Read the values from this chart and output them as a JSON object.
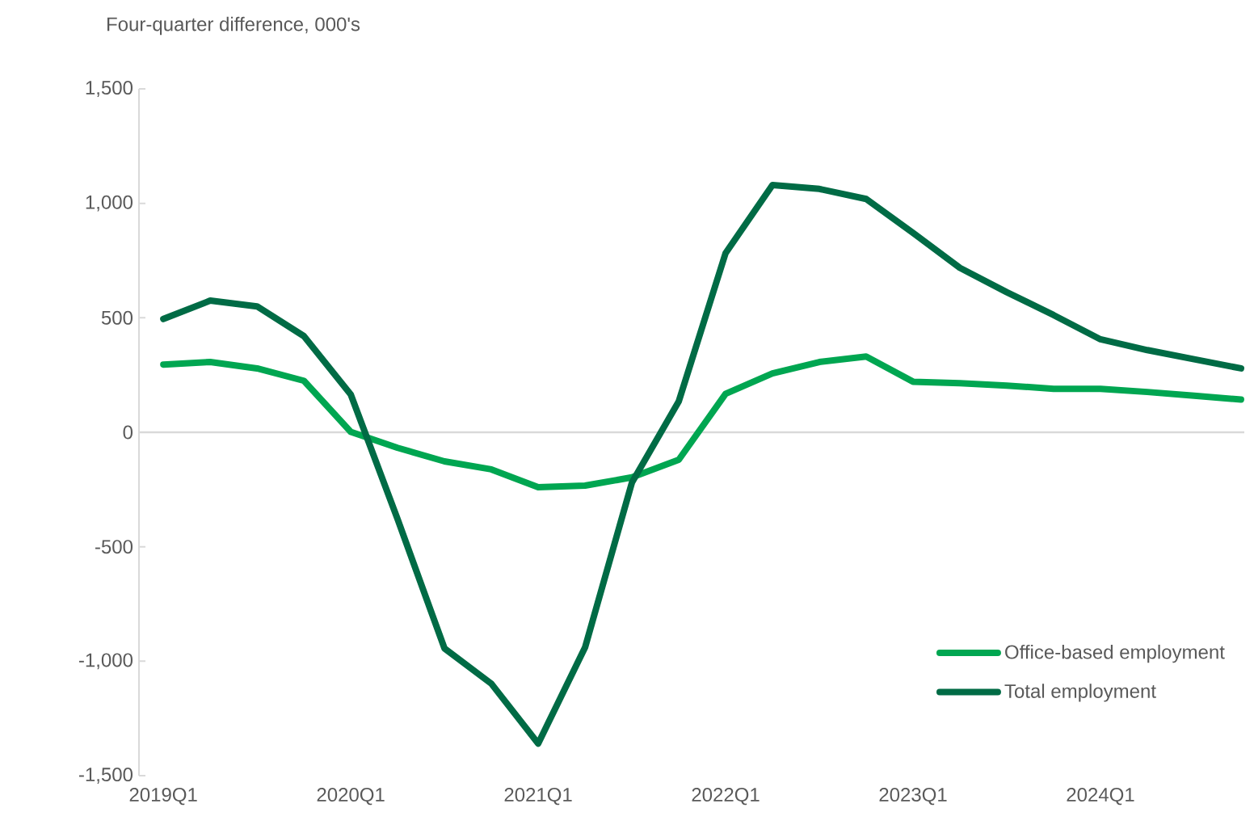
{
  "chart_data": {
    "type": "line",
    "ylabel": "Four-quarter difference, 000's",
    "categories": [
      "2019Q1",
      null,
      null,
      null,
      "2020Q1",
      null,
      null,
      null,
      "2021Q1",
      null,
      null,
      null,
      "2022Q1",
      null,
      null,
      null,
      "2023Q1",
      null,
      null,
      null,
      "2024Q1",
      null,
      null,
      null
    ],
    "series": [
      {
        "name": "Office-based employment",
        "color": "#00a651",
        "values": [
          296,
          307,
          279,
          225,
          2,
          -68,
          -127,
          -162,
          -240,
          -233,
          -197,
          -120,
          168,
          257,
          307,
          331,
          221,
          214,
          204,
          190,
          190,
          176,
          160,
          143
        ]
      },
      {
        "name": "Total employment",
        "color": "#006b45",
        "values": [
          495,
          575,
          550,
          420,
          165,
          -380,
          -944,
          -1098,
          -1360,
          -940,
          -220,
          135,
          783,
          1080,
          1063,
          1019,
          871,
          718,
          612,
          512,
          406,
          359,
          319,
          279
        ]
      }
    ],
    "ylim": [
      -1500,
      1500
    ],
    "yticks": [
      {
        "value": -1500,
        "label": "-1,500"
      },
      {
        "value": -1000,
        "label": "-1,000"
      },
      -500,
      0,
      500,
      {
        "value": 1000,
        "label": "1,000"
      },
      {
        "value": 1500,
        "label": "1,500"
      }
    ],
    "ref_lines": [
      {
        "axis": "y",
        "value": 0,
        "color": "#d9d9d9"
      }
    ],
    "grid": false,
    "legend": "bottom right",
    "marker": "none",
    "line_style": "solid"
  }
}
